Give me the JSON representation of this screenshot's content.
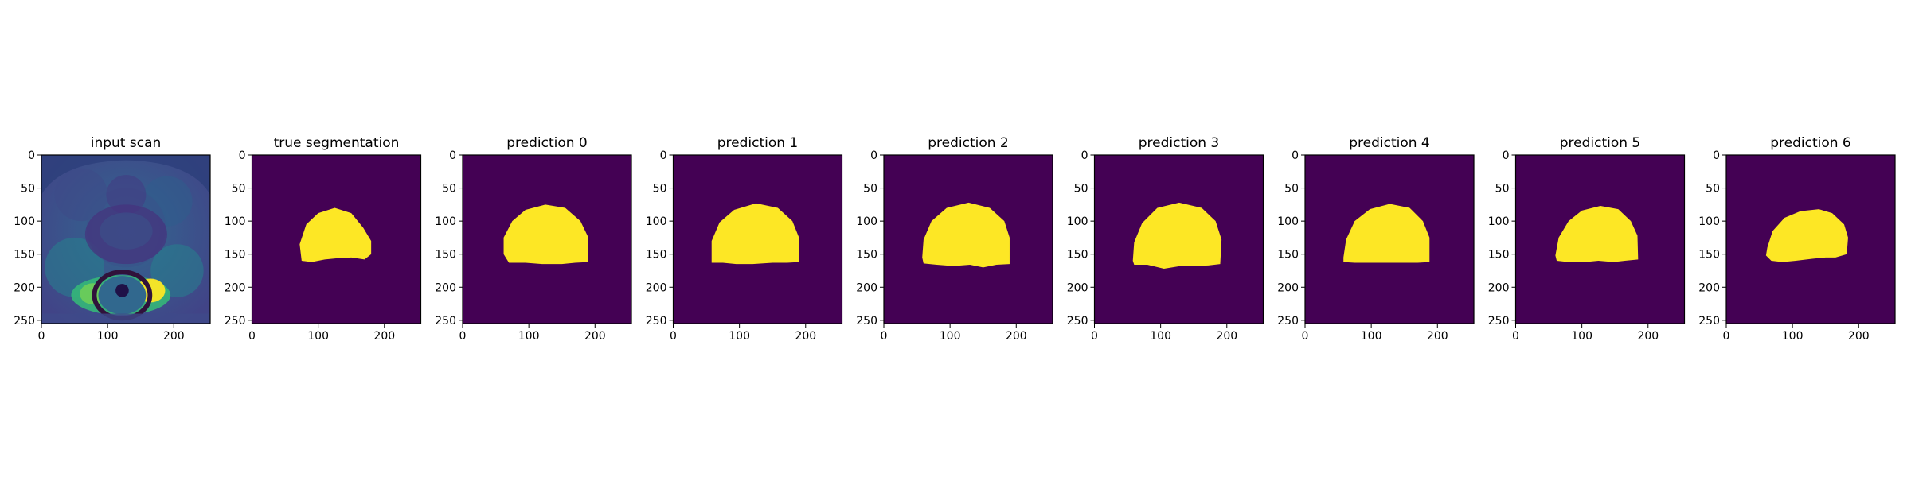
{
  "chart_data": {
    "type": "heatmap",
    "colormap": "viridis",
    "xlim": [
      0,
      255
    ],
    "ylim": [
      255,
      0
    ],
    "x_ticks": [
      0,
      100,
      200
    ],
    "y_ticks": [
      0,
      50,
      100,
      150,
      200,
      250
    ],
    "grid": false,
    "legend": "none",
    "colors": {
      "background": "#440154",
      "foreground": "#fde725",
      "scan_dark": "#440154",
      "scan_mid": "#31688e",
      "scan_light": "#35b779",
      "scan_bright": "#fde725"
    },
    "panels": [
      {
        "title": "input scan",
        "kind": "scan"
      },
      {
        "title": "true segmentation",
        "kind": "mask",
        "outline": [
          [
            75,
            160
          ],
          [
            72,
            135
          ],
          [
            82,
            105
          ],
          [
            100,
            88
          ],
          [
            125,
            80
          ],
          [
            150,
            88
          ],
          [
            168,
            110
          ],
          [
            180,
            130
          ],
          [
            180,
            150
          ],
          [
            170,
            158
          ],
          [
            150,
            155
          ],
          [
            130,
            156
          ],
          [
            110,
            158
          ],
          [
            90,
            162
          ]
        ]
      },
      {
        "title": "prediction 0",
        "kind": "mask",
        "outline": [
          [
            62,
            150
          ],
          [
            62,
            125
          ],
          [
            75,
            100
          ],
          [
            95,
            83
          ],
          [
            125,
            75
          ],
          [
            155,
            80
          ],
          [
            178,
            100
          ],
          [
            190,
            125
          ],
          [
            190,
            162
          ],
          [
            170,
            163
          ],
          [
            150,
            165
          ],
          [
            120,
            165
          ],
          [
            95,
            163
          ],
          [
            70,
            163
          ]
        ]
      },
      {
        "title": "prediction 1",
        "kind": "mask",
        "outline": [
          [
            58,
            155
          ],
          [
            58,
            130
          ],
          [
            70,
            102
          ],
          [
            92,
            83
          ],
          [
            125,
            73
          ],
          [
            158,
            80
          ],
          [
            180,
            100
          ],
          [
            190,
            125
          ],
          [
            190,
            162
          ],
          [
            172,
            163
          ],
          [
            150,
            163
          ],
          [
            120,
            165
          ],
          [
            95,
            165
          ],
          [
            75,
            163
          ],
          [
            58,
            163
          ]
        ]
      },
      {
        "title": "prediction 2",
        "kind": "mask",
        "outline": [
          [
            58,
            155
          ],
          [
            60,
            128
          ],
          [
            72,
            100
          ],
          [
            95,
            80
          ],
          [
            128,
            72
          ],
          [
            160,
            80
          ],
          [
            182,
            100
          ],
          [
            190,
            125
          ],
          [
            190,
            165
          ],
          [
            170,
            166
          ],
          [
            150,
            170
          ],
          [
            130,
            166
          ],
          [
            105,
            168
          ],
          [
            80,
            166
          ],
          [
            60,
            164
          ]
        ]
      },
      {
        "title": "prediction 3",
        "kind": "mask",
        "outline": [
          [
            58,
            160
          ],
          [
            60,
            132
          ],
          [
            72,
            103
          ],
          [
            95,
            80
          ],
          [
            128,
            72
          ],
          [
            162,
            80
          ],
          [
            183,
            100
          ],
          [
            192,
            128
          ],
          [
            190,
            165
          ],
          [
            172,
            167
          ],
          [
            150,
            168
          ],
          [
            130,
            168
          ],
          [
            105,
            172
          ],
          [
            80,
            166
          ],
          [
            60,
            166
          ]
        ]
      },
      {
        "title": "prediction 4",
        "kind": "mask",
        "outline": [
          [
            58,
            155
          ],
          [
            62,
            128
          ],
          [
            75,
            100
          ],
          [
            98,
            82
          ],
          [
            128,
            74
          ],
          [
            158,
            80
          ],
          [
            178,
            100
          ],
          [
            188,
            125
          ],
          [
            188,
            162
          ],
          [
            170,
            163
          ],
          [
            150,
            163
          ],
          [
            120,
            163
          ],
          [
            95,
            163
          ],
          [
            75,
            163
          ],
          [
            58,
            162
          ]
        ]
      },
      {
        "title": "prediction 5",
        "kind": "mask",
        "outline": [
          [
            60,
            152
          ],
          [
            65,
            125
          ],
          [
            80,
            100
          ],
          [
            100,
            84
          ],
          [
            128,
            77
          ],
          [
            155,
            82
          ],
          [
            174,
            100
          ],
          [
            184,
            122
          ],
          [
            185,
            158
          ],
          [
            165,
            160
          ],
          [
            148,
            162
          ],
          [
            125,
            160
          ],
          [
            105,
            162
          ],
          [
            80,
            162
          ],
          [
            62,
            160
          ]
        ]
      },
      {
        "title": "prediction 6",
        "kind": "mask",
        "outline": [
          [
            62,
            140
          ],
          [
            70,
            115
          ],
          [
            88,
            95
          ],
          [
            112,
            85
          ],
          [
            140,
            82
          ],
          [
            160,
            88
          ],
          [
            178,
            105
          ],
          [
            184,
            125
          ],
          [
            182,
            150
          ],
          [
            165,
            155
          ],
          [
            150,
            155
          ],
          [
            130,
            157
          ],
          [
            105,
            160
          ],
          [
            85,
            162
          ],
          [
            68,
            160
          ],
          [
            60,
            152
          ]
        ]
      }
    ]
  }
}
